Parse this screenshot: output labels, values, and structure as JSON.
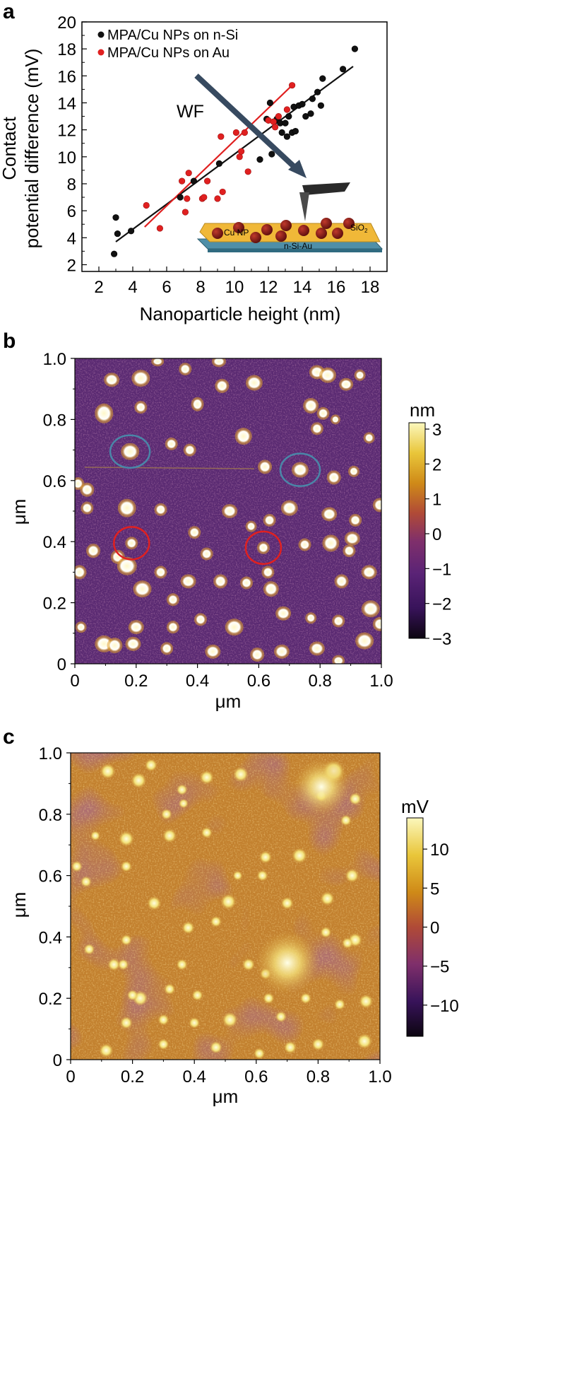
{
  "panels": {
    "a": "a",
    "b": "b",
    "c": "c"
  },
  "chart_data": [
    {
      "type": "scatter",
      "panel": "a",
      "xlabel": "Nanoparticle height (nm)",
      "ylabel_line1": "Contact",
      "ylabel_line2": "potential difference (mV)",
      "xlim": [
        1,
        19
      ],
      "ylim": [
        1.5,
        20
      ],
      "xticks": [
        "2",
        "4",
        "6",
        "8",
        "10",
        "12",
        "14",
        "16",
        "18"
      ],
      "yticks": [
        "2",
        "4",
        "6",
        "8",
        "10",
        "12",
        "14",
        "16",
        "18",
        "20"
      ],
      "legend_position": "top-left",
      "colors": {
        "n_si": "#111111",
        "au": "#e02020",
        "arrow": "#374a60"
      },
      "series": [
        {
          "name": "MPA/Cu NPs on n-Si",
          "color": "#111111",
          "x": [
            2.9,
            3.0,
            3.1,
            3.9,
            6.8,
            7.6,
            9.1,
            11.5,
            11.9,
            12.1,
            12.2,
            12.5,
            12.7,
            12.8,
            13.0,
            13.1,
            13.2,
            13.4,
            13.5,
            13.6,
            13.8,
            14.0,
            14.2,
            14.5,
            14.6,
            14.9,
            15.1,
            15.2,
            16.4,
            17.1
          ],
          "y": [
            2.8,
            5.5,
            4.3,
            4.5,
            7.0,
            8.2,
            9.5,
            9.8,
            12.8,
            14.0,
            10.2,
            12.8,
            12.5,
            11.8,
            12.5,
            11.5,
            13.0,
            11.8,
            13.7,
            11.9,
            13.8,
            13.9,
            13.0,
            13.2,
            14.3,
            14.8,
            13.8,
            15.8,
            16.5,
            18.0
          ]
        },
        {
          "name": "MPA/Cu NPs on Au",
          "color": "#e02020",
          "x": [
            4.8,
            5.6,
            6.9,
            7.1,
            7.2,
            7.3,
            8.1,
            8.2,
            8.4,
            9.0,
            9.2,
            9.3,
            10.1,
            10.3,
            10.4,
            10.6,
            10.8,
            12.0,
            12.3,
            12.4,
            12.6,
            13.1,
            13.4
          ],
          "y": [
            6.4,
            4.7,
            8.2,
            5.9,
            6.9,
            8.8,
            6.9,
            7.0,
            8.2,
            6.9,
            11.5,
            7.4,
            11.8,
            10.0,
            10.4,
            11.8,
            8.9,
            12.7,
            12.6,
            12.2,
            13.0,
            13.5,
            15.3
          ]
        }
      ],
      "fit_lines": [
        {
          "series": "MPA/Cu NPs on n-Si",
          "x": [
            3.0,
            17.0
          ],
          "y": [
            3.7,
            16.7
          ]
        },
        {
          "series": "MPA/Cu NPs on Au",
          "x": [
            4.7,
            13.4
          ],
          "y": [
            4.8,
            15.3
          ]
        }
      ],
      "annotation": {
        "wf_label": "WF"
      },
      "inset": {
        "label_np": "Cu NP",
        "label_oxide_base": "SiO",
        "label_oxide_sub": "2",
        "label_substrate": "n-Si-Au"
      }
    },
    {
      "type": "heatmap",
      "panel": "b",
      "xlabel": "μm",
      "ylabel": "μm",
      "xlim": [
        0,
        1.0
      ],
      "ylim": [
        0,
        1.0
      ],
      "xticks": [
        "0",
        "0.2",
        "0.4",
        "0.6",
        "0.8",
        "1.0"
      ],
      "yticks": [
        "0",
        "0.2",
        "0.4",
        "0.6",
        "0.8",
        "1.0"
      ],
      "colorbar": {
        "unit": "nm",
        "min": -3,
        "max": 3,
        "ticks": [
          "3",
          "2",
          "1",
          "0",
          "−1",
          "−2",
          "−3"
        ]
      },
      "colormap": [
        "#0c0510",
        "#38135a",
        "#5a2376",
        "#7f2f6b",
        "#b04a37",
        "#cf8a18",
        "#e9c63a",
        "#fbf7bc"
      ],
      "marked_particles": [
        {
          "color": "blue",
          "hex": "#4a86a8",
          "x": 0.18,
          "y": 0.695
        },
        {
          "color": "blue",
          "hex": "#4a86a8",
          "x": 0.735,
          "y": 0.635
        },
        {
          "color": "red",
          "hex": "#e02020",
          "x": 0.185,
          "y": 0.395
        },
        {
          "color": "red",
          "hex": "#e02020",
          "x": 0.615,
          "y": 0.38
        }
      ]
    },
    {
      "type": "heatmap",
      "panel": "c",
      "xlabel": "μm",
      "ylabel": "μm",
      "xlim": [
        0,
        1.0
      ],
      "ylim": [
        0,
        1.0
      ],
      "xticks": [
        "0",
        "0.2",
        "0.4",
        "0.6",
        "0.8",
        "1.0"
      ],
      "yticks": [
        "0",
        "0.2",
        "0.4",
        "0.6",
        "0.8",
        "1.0"
      ],
      "colorbar": {
        "unit": "mV",
        "min": -14,
        "max": 14,
        "ticks": [
          "10",
          "5",
          "0",
          "−5",
          "−10"
        ],
        "tick_values": [
          10,
          5,
          0,
          -5,
          -10
        ]
      },
      "colormap": [
        "#0c0510",
        "#38135a",
        "#7f2f6b",
        "#b04a37",
        "#cf8a18",
        "#e9c63a",
        "#fbf7bc"
      ]
    }
  ]
}
